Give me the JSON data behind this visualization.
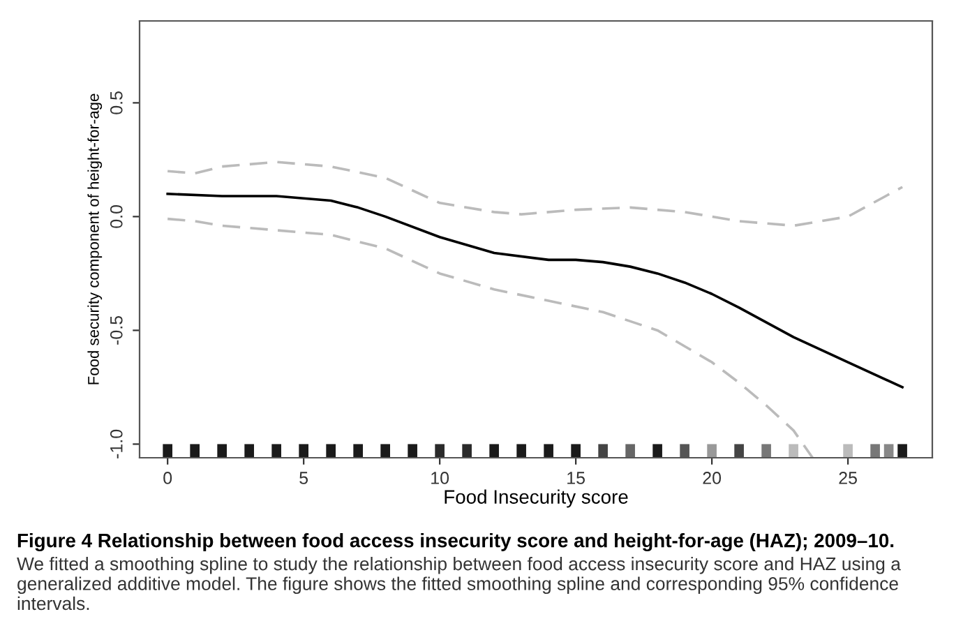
{
  "chart_data": {
    "type": "line",
    "xlabel": "Food Insecurity score",
    "ylabel": "Food security component of height-for-age",
    "xlim": [
      -1.03,
      28.1
    ],
    "ylim": [
      -1.06,
      0.86
    ],
    "xticks": [
      0,
      5,
      10,
      15,
      20,
      25
    ],
    "yticks": [
      {
        "value": -1.0,
        "label": "-1.0"
      },
      {
        "value": -0.5,
        "label": "-0.5"
      },
      {
        "value": 0.0,
        "label": "0.0"
      },
      {
        "value": 0.5,
        "label": "0.5"
      }
    ],
    "grid": false,
    "legend": false,
    "series": [
      {
        "color": "#000000",
        "line_style": "solid",
        "x": [
          0,
          2,
          4,
          6,
          7,
          8,
          10,
          12,
          14,
          15,
          16,
          17,
          18,
          19,
          20,
          21,
          23,
          25,
          27
        ],
        "values": [
          0.1,
          0.09,
          0.09,
          0.07,
          0.04,
          0.0,
          -0.09,
          -0.16,
          -0.19,
          -0.19,
          -0.2,
          -0.22,
          -0.25,
          -0.29,
          -0.34,
          -0.4,
          -0.53,
          -0.64,
          -0.75
        ]
      },
      {
        "color": "#bbbbbb",
        "line_style": "dashed",
        "x": [
          0,
          1,
          2,
          4,
          6,
          8,
          10,
          12,
          13,
          15,
          17,
          19,
          21,
          23,
          25,
          27
        ],
        "values": [
          0.2,
          0.19,
          0.22,
          0.24,
          0.22,
          0.17,
          0.06,
          0.02,
          0.01,
          0.03,
          0.04,
          0.02,
          -0.02,
          -0.04,
          0.0,
          0.13
        ]
      },
      {
        "color": "#bbbbbb",
        "line_style": "dashed",
        "x": [
          0,
          1,
          2,
          4,
          6,
          8,
          10,
          12,
          14,
          16,
          18,
          19,
          20,
          21,
          22,
          23,
          23.7
        ],
        "values": [
          -0.01,
          -0.02,
          -0.04,
          -0.06,
          -0.08,
          -0.14,
          -0.25,
          -0.32,
          -0.37,
          -0.42,
          -0.5,
          -0.57,
          -0.64,
          -0.73,
          -0.83,
          -0.94,
          -1.06
        ]
      },
      {
        "type": "bar",
        "x": [
          0,
          1,
          2,
          3,
          4,
          5,
          6,
          7,
          8,
          9,
          10,
          11,
          12,
          13,
          14,
          15,
          16,
          17,
          18,
          19,
          20,
          21,
          22,
          23,
          25,
          26,
          26.5,
          27
        ],
        "base": [
          -1.06,
          -1.06,
          -1.06,
          -1.06,
          -1.06,
          -1.06,
          -1.06,
          -1.06,
          -1.06,
          -1.06,
          -1.06,
          -1.06,
          -1.06,
          -1.06,
          -1.06,
          -1.06,
          -1.06,
          -1.06,
          -1.06,
          -1.06,
          -1.06,
          -1.06,
          -1.06,
          -1.06,
          -1.06,
          -1.06,
          -1.06,
          -1.06
        ],
        "values": [
          0.06,
          0.06,
          0.06,
          0.06,
          0.06,
          0.06,
          0.06,
          0.06,
          0.06,
          0.06,
          0.06,
          0.06,
          0.06,
          0.06,
          0.06,
          0.06,
          0.06,
          0.06,
          0.06,
          0.06,
          0.06,
          0.06,
          0.06,
          0.06,
          0.06,
          0.06,
          0.06,
          0.06
        ],
        "colors": [
          "#1a1a1a",
          "#1a1a1a",
          "#1a1a1a",
          "#1a1a1a",
          "#1a1a1a",
          "#1a1a1a",
          "#1a1a1a",
          "#1a1a1a",
          "#1a1a1a",
          "#1a1a1a",
          "#2a2a2a",
          "#2a2a2a",
          "#1a1a1a",
          "#1a1a1a",
          "#1a1a1a",
          "#1a1a1a",
          "#444444",
          "#666666",
          "#1a1a1a",
          "#555555",
          "#999999",
          "#444444",
          "#777777",
          "#bbbbbb",
          "#bbbbbb",
          "#777777",
          "#888888",
          "#1a1a1a"
        ]
      }
    ],
    "annotations": [
      "Figure 4 Relationship between food access insecurity score and height-for-age (HAZ); 2009–10.",
      "We fitted a smoothing spline to study the relationship between food access insecurity score and HAZ using a generalized additive model. The figure shows the fitted smoothing spline and corresponding 95% confidence intervals."
    ]
  }
}
